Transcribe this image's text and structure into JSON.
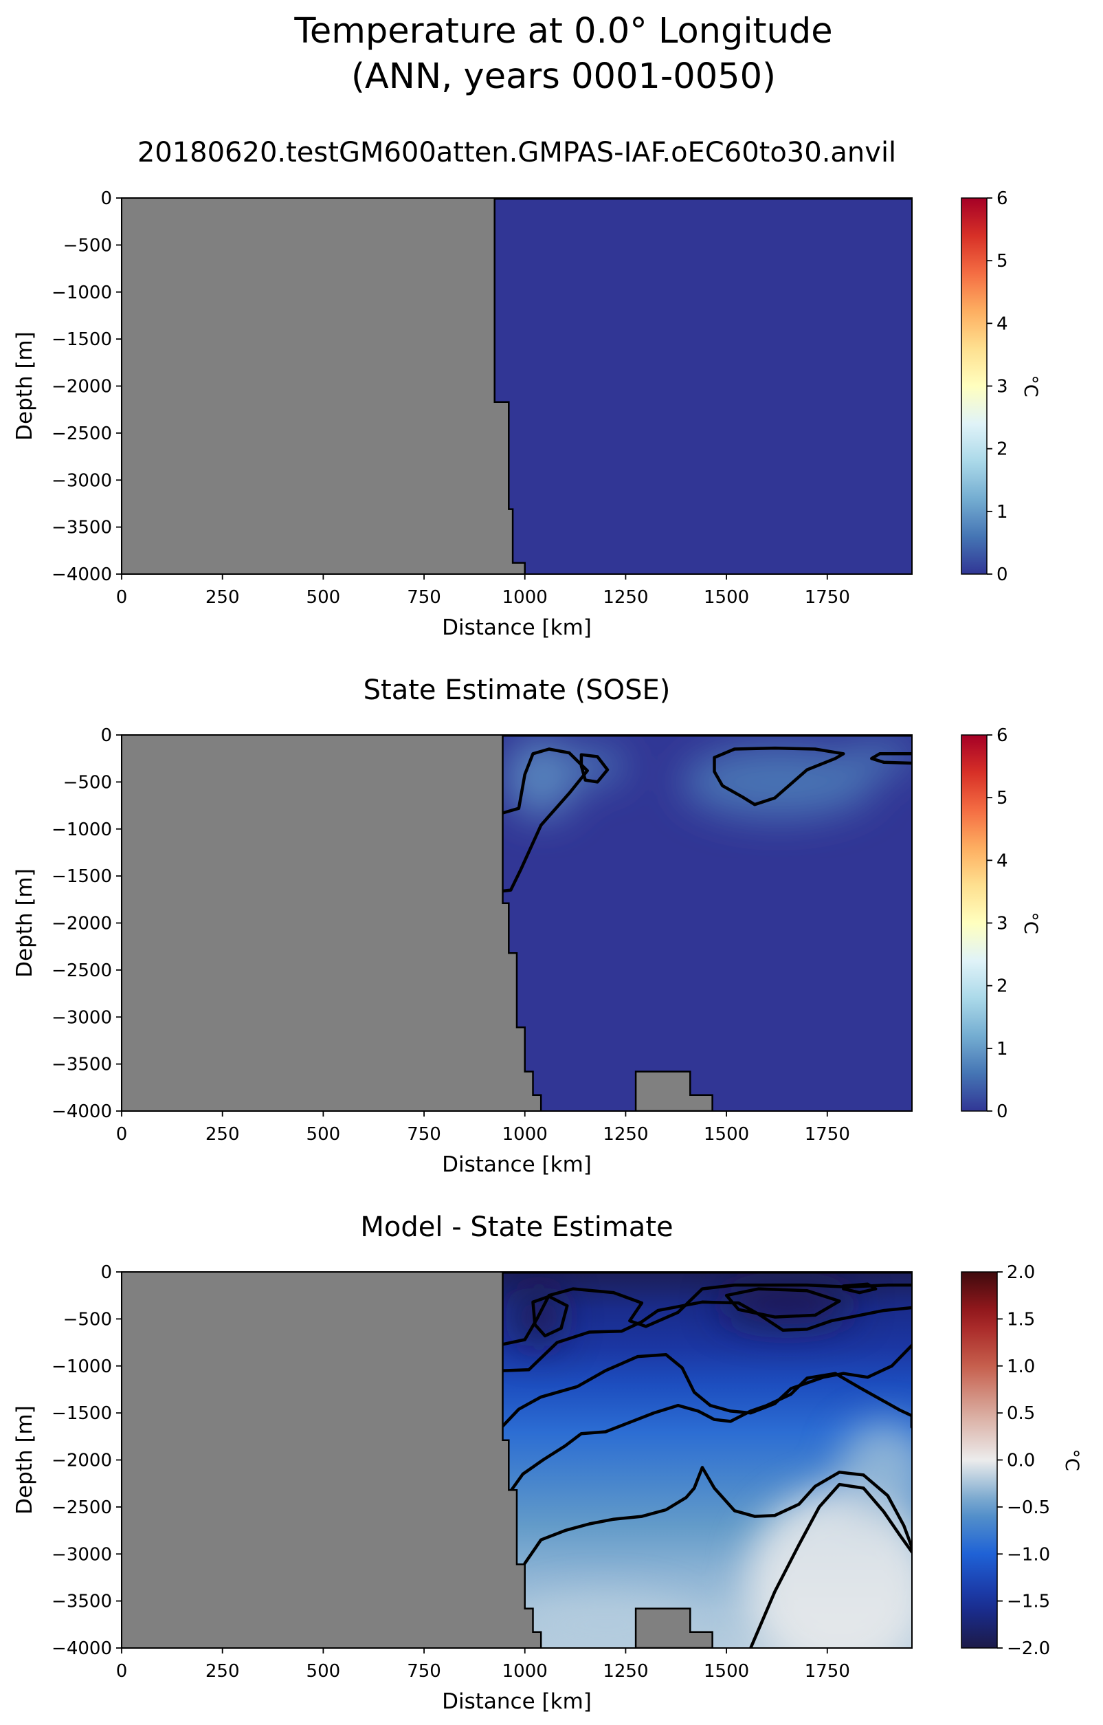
{
  "figure": {
    "title_line1": "Temperature at 0.0° Longitude",
    "title_line2": "(ANN, years 0001-0050)"
  },
  "chart_data": [
    {
      "type": "heatmap",
      "title": "20180620.testGM600atten.GMPAS-IAF.oEC60to30.anvil",
      "xlabel": "Distance [km]",
      "ylabel": "Depth [m]",
      "xlim": [
        0,
        1960
      ],
      "ylim": [
        -4000,
        0
      ],
      "xticks": [
        0,
        250,
        500,
        750,
        1000,
        1250,
        1500,
        1750
      ],
      "yticks": [
        0,
        -500,
        -1000,
        -1500,
        -2000,
        -2500,
        -3000,
        -3500,
        -4000
      ],
      "colorbar": {
        "label": "°C",
        "range": [
          0,
          6
        ],
        "ticks": [
          0,
          1,
          2,
          3,
          4,
          5,
          6
        ],
        "colormap": "RdYlBu_r"
      },
      "land_color": "#808080",
      "ocean_fill": "#313695",
      "land_mask": {
        "topography": [
          [
            925,
            0
          ],
          [
            925,
            -2170
          ],
          [
            960,
            -2170
          ],
          [
            960,
            -3310
          ],
          [
            970,
            -3310
          ],
          [
            970,
            -3880
          ],
          [
            1000,
            -3880
          ],
          [
            1000,
            -4000
          ]
        ]
      },
      "field_note": "uniform ~0 °C over ocean"
    },
    {
      "type": "heatmap",
      "title": "State Estimate (SOSE)",
      "xlabel": "Distance [km]",
      "ylabel": "Depth [m]",
      "xlim": [
        0,
        1960
      ],
      "ylim": [
        -4000,
        0
      ],
      "xticks": [
        0,
        250,
        500,
        750,
        1000,
        1250,
        1500,
        1750
      ],
      "yticks": [
        0,
        -500,
        -1000,
        -1500,
        -2000,
        -2500,
        -3000,
        -3500,
        -4000
      ],
      "colorbar": {
        "label": "°C",
        "range": [
          0,
          6
        ],
        "ticks": [
          0,
          1,
          2,
          3,
          4,
          5,
          6
        ],
        "colormap": "RdYlBu_r"
      },
      "land_color": "#808080",
      "ocean_fill": "#313695",
      "land_mask": {
        "topography": [
          [
            945,
            0
          ],
          [
            945,
            -1790
          ],
          [
            960,
            -1790
          ],
          [
            960,
            -2320
          ],
          [
            980,
            -2320
          ],
          [
            980,
            -3110
          ],
          [
            1000,
            -3110
          ],
          [
            1000,
            -3580
          ],
          [
            1020,
            -3580
          ],
          [
            1020,
            -3830
          ],
          [
            1040,
            -3830
          ],
          [
            1040,
            -4000
          ]
        ],
        "seamount": [
          [
            1275,
            -4000
          ],
          [
            1275,
            -3580
          ],
          [
            1410,
            -3580
          ],
          [
            1410,
            -3830
          ],
          [
            1465,
            -3830
          ],
          [
            1465,
            -4000
          ]
        ]
      },
      "contours": [
        {
          "level": 0.5,
          "points": [
            [
              945,
              -830
            ],
            [
              985,
              -780
            ],
            [
              1000,
              -420
            ],
            [
              1020,
              -200
            ],
            [
              1060,
              -150
            ],
            [
              1110,
              -190
            ],
            [
              1155,
              -380
            ],
            [
              1110,
              -620
            ],
            [
              1040,
              -960
            ],
            [
              990,
              -1430
            ],
            [
              965,
              -1650
            ],
            [
              945,
              -1660
            ]
          ]
        },
        {
          "level": 0.5,
          "points": [
            [
              1140,
              -210
            ],
            [
              1180,
              -230
            ],
            [
              1205,
              -370
            ],
            [
              1180,
              -500
            ],
            [
              1150,
              -480
            ],
            [
              1140,
              -330
            ],
            [
              1140,
              -210
            ]
          ]
        },
        {
          "level": 0.5,
          "points": [
            [
              1470,
              -240
            ],
            [
              1520,
              -150
            ],
            [
              1620,
              -140
            ],
            [
              1720,
              -150
            ],
            [
              1790,
              -200
            ],
            [
              1770,
              -250
            ],
            [
              1700,
              -370
            ],
            [
              1620,
              -670
            ],
            [
              1570,
              -740
            ],
            [
              1540,
              -660
            ],
            [
              1490,
              -540
            ],
            [
              1470,
              -390
            ],
            [
              1470,
              -240
            ]
          ]
        },
        {
          "level": 0.5,
          "points": [
            [
              1960,
              -200
            ],
            [
              1880,
              -200
            ],
            [
              1860,
              -250
            ],
            [
              1890,
              -290
            ],
            [
              1960,
              -300
            ]
          ]
        }
      ],
      "warm_patches": [
        {
          "cx": 1040,
          "cy": -450,
          "rx": 90,
          "ry": 420,
          "value": 0.9
        },
        {
          "cx": 1630,
          "cy": -500,
          "rx": 240,
          "ry": 380,
          "value": 0.7
        },
        {
          "cx": 1180,
          "cy": -330,
          "rx": 70,
          "ry": 180,
          "value": 0.7
        },
        {
          "cx": 1880,
          "cy": -230,
          "rx": 90,
          "ry": 150,
          "value": 0.7
        }
      ]
    },
    {
      "type": "heatmap",
      "title": "Model - State Estimate",
      "xlabel": "Distance [km]",
      "ylabel": "Depth [m]",
      "xlim": [
        0,
        1960
      ],
      "ylim": [
        -4000,
        0
      ],
      "xticks": [
        0,
        250,
        500,
        750,
        1000,
        1250,
        1500,
        1750
      ],
      "yticks": [
        0,
        -500,
        -1000,
        -1500,
        -2000,
        -2500,
        -3000,
        -3500,
        -4000
      ],
      "colorbar": {
        "label": "°C",
        "range": [
          -2.0,
          2.0
        ],
        "ticks": [
          -2.0,
          -1.5,
          -1.0,
          -0.5,
          0.0,
          0.5,
          1.0,
          1.5,
          2.0
        ],
        "colormap": "RdBu_r"
      },
      "land_color": "#808080",
      "land_mask": {
        "topography": [
          [
            945,
            0
          ],
          [
            945,
            -1790
          ],
          [
            960,
            -1790
          ],
          [
            960,
            -2320
          ],
          [
            980,
            -2320
          ],
          [
            980,
            -3110
          ],
          [
            1000,
            -3110
          ],
          [
            1000,
            -3580
          ],
          [
            1020,
            -3580
          ],
          [
            1020,
            -3830
          ],
          [
            1040,
            -3830
          ],
          [
            1040,
            -4000
          ]
        ],
        "seamount": [
          [
            1275,
            -4000
          ],
          [
            1275,
            -3580
          ],
          [
            1410,
            -3580
          ],
          [
            1410,
            -3830
          ],
          [
            1465,
            -3830
          ],
          [
            1465,
            -4000
          ]
        ]
      },
      "vertical_profile": [
        [
          0,
          -1.9
        ],
        [
          -150,
          -1.8
        ],
        [
          -400,
          -1.6
        ],
        [
          -800,
          -1.45
        ],
        [
          -1200,
          -1.2
        ],
        [
          -1700,
          -0.9
        ],
        [
          -2200,
          -0.7
        ],
        [
          -2700,
          -0.5
        ],
        [
          -3200,
          -0.35
        ],
        [
          -3600,
          -0.25
        ],
        [
          -4000,
          -0.2
        ]
      ],
      "warm_patches": [
        {
          "cx": 1780,
          "cy": -3300,
          "rx": 230,
          "ry": 1000,
          "value": 0.0
        },
        {
          "cx": 1890,
          "cy": -2100,
          "rx": 110,
          "ry": 500,
          "value": -0.3
        },
        {
          "cx": 1200,
          "cy": -3750,
          "rx": 220,
          "ry": 300,
          "value": -0.2
        }
      ],
      "cold_patches": [
        {
          "cx": 1035,
          "cy": -480,
          "rx": 55,
          "ry": 320,
          "value": -2.0
        },
        {
          "cx": 1650,
          "cy": -350,
          "rx": 170,
          "ry": 220,
          "value": -2.0
        }
      ],
      "contours": [
        {
          "level": -1.5,
          "points": [
            [
              1020,
              -320
            ],
            [
              1060,
              -260
            ],
            [
              1105,
              -360
            ],
            [
              1090,
              -600
            ],
            [
              1050,
              -680
            ],
            [
              1025,
              -560
            ],
            [
              1020,
              -320
            ]
          ]
        },
        {
          "level": -1.5,
          "points": [
            [
              1500,
              -250
            ],
            [
              1580,
              -180
            ],
            [
              1700,
              -200
            ],
            [
              1780,
              -310
            ],
            [
              1720,
              -460
            ],
            [
              1620,
              -480
            ],
            [
              1530,
              -400
            ],
            [
              1500,
              -250
            ]
          ]
        },
        {
          "level": -1.5,
          "points": [
            [
              1790,
              -150
            ],
            [
              1850,
              -130
            ],
            [
              1870,
              -180
            ],
            [
              1830,
              -220
            ],
            [
              1790,
              -180
            ]
          ]
        },
        {
          "level": -1.0,
          "points": [
            [
              945,
              -770
            ],
            [
              1000,
              -720
            ],
            [
              1030,
              -500
            ],
            [
              1060,
              -250
            ],
            [
              1120,
              -180
            ],
            [
              1220,
              -220
            ],
            [
              1290,
              -330
            ],
            [
              1260,
              -520
            ],
            [
              1300,
              -580
            ],
            [
              1380,
              -430
            ],
            [
              1440,
              -180
            ],
            [
              1520,
              -140
            ],
            [
              1700,
              -140
            ],
            [
              1800,
              -160
            ],
            [
              1900,
              -140
            ],
            [
              1960,
              -140
            ]
          ]
        },
        {
          "level": -1.0,
          "points": [
            [
              1960,
              -380
            ],
            [
              1890,
              -410
            ],
            [
              1820,
              -470
            ],
            [
              1760,
              -520
            ],
            [
              1700,
              -610
            ],
            [
              1640,
              -620
            ],
            [
              1580,
              -450
            ],
            [
              1530,
              -330
            ],
            [
              1440,
              -320
            ],
            [
              1330,
              -410
            ],
            [
              1290,
              -530
            ],
            [
              1240,
              -630
            ],
            [
              1160,
              -640
            ],
            [
              1080,
              -750
            ],
            [
              1010,
              -1040
            ],
            [
              945,
              -1050
            ]
          ]
        },
        {
          "level": -0.5,
          "points": [
            [
              945,
              -1640
            ],
            [
              985,
              -1460
            ],
            [
              1040,
              -1330
            ],
            [
              1130,
              -1220
            ],
            [
              1200,
              -1050
            ],
            [
              1280,
              -900
            ],
            [
              1350,
              -880
            ],
            [
              1390,
              -1020
            ],
            [
              1420,
              -1280
            ],
            [
              1460,
              -1420
            ],
            [
              1510,
              -1480
            ],
            [
              1560,
              -1500
            ],
            [
              1620,
              -1400
            ],
            [
              1660,
              -1240
            ],
            [
              1740,
              -1120
            ],
            [
              1790,
              -1080
            ],
            [
              1850,
              -1120
            ],
            [
              1910,
              -1000
            ],
            [
              1960,
              -780
            ]
          ]
        },
        {
          "level": 0.0,
          "points": [
            [
              945,
              -2450
            ],
            [
              995,
              -2150
            ],
            [
              1045,
              -2000
            ],
            [
              1100,
              -1850
            ],
            [
              1140,
              -1720
            ],
            [
              1200,
              -1700
            ],
            [
              1260,
              -1600
            ],
            [
              1320,
              -1500
            ],
            [
              1380,
              -1420
            ],
            [
              1430,
              -1480
            ],
            [
              1470,
              -1570
            ],
            [
              1510,
              -1590
            ],
            [
              1560,
              -1480
            ],
            [
              1600,
              -1420
            ],
            [
              1660,
              -1300
            ],
            [
              1700,
              -1130
            ],
            [
              1770,
              -1080
            ],
            [
              1830,
              -1230
            ],
            [
              1880,
              -1350
            ],
            [
              1930,
              -1470
            ],
            [
              1960,
              -1530
            ],
            [
              1960,
              -1650
            ]
          ]
        },
        {
          "level": 0.5,
          "points": [
            [
              1000,
              -3100
            ],
            [
              1040,
              -2850
            ],
            [
              1100,
              -2750
            ],
            [
              1160,
              -2680
            ],
            [
              1220,
              -2630
            ],
            [
              1290,
              -2600
            ],
            [
              1350,
              -2530
            ],
            [
              1400,
              -2400
            ],
            [
              1420,
              -2300
            ],
            [
              1440,
              -2080
            ],
            [
              1470,
              -2300
            ],
            [
              1520,
              -2540
            ],
            [
              1570,
              -2600
            ],
            [
              1620,
              -2590
            ],
            [
              1680,
              -2470
            ],
            [
              1720,
              -2280
            ],
            [
              1780,
              -2130
            ],
            [
              1840,
              -2160
            ],
            [
              1900,
              -2380
            ],
            [
              1940,
              -2700
            ],
            [
              1960,
              -2930
            ]
          ]
        },
        {
          "level": 1.0,
          "points": [
            [
              1560,
              -4000
            ],
            [
              1580,
              -3800
            ],
            [
              1620,
              -3400
            ],
            [
              1680,
              -2900
            ],
            [
              1730,
              -2500
            ],
            [
              1780,
              -2260
            ],
            [
              1840,
              -2300
            ],
            [
              1890,
              -2550
            ],
            [
              1930,
              -2800
            ],
            [
              1960,
              -2980
            ]
          ]
        }
      ]
    }
  ]
}
